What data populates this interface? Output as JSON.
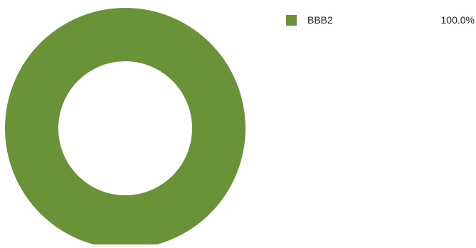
{
  "chart_data": {
    "type": "pie",
    "variant": "donut",
    "legend_position": "right",
    "slices": [
      {
        "label": "BBB2",
        "value": 100.0,
        "display": "100.0%",
        "color": "#6a9339"
      }
    ]
  }
}
